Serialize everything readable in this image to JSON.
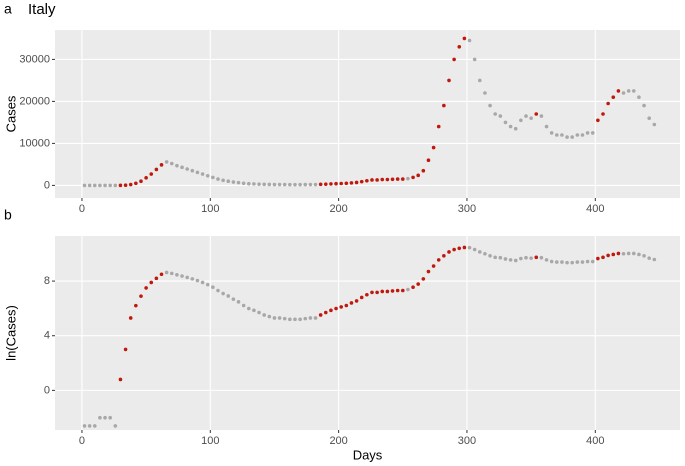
{
  "chart_data": [
    {
      "type": "scatter",
      "panel_label": "a",
      "title": "Italy",
      "ylabel": "Cases",
      "xlim": [
        -21,
        466
      ],
      "ylim": [
        -3000,
        37000
      ],
      "xticks": [
        0,
        100,
        200,
        300,
        400
      ],
      "yticks": [
        0,
        10000,
        20000,
        30000
      ],
      "grid": true,
      "series": [
        {
          "color": "#a8a8a8",
          "x": [
            2,
            6,
            10,
            14,
            18,
            22,
            26,
            66,
            70,
            74,
            78,
            82,
            86,
            90,
            94,
            98,
            102,
            106,
            110,
            114,
            118,
            122,
            126,
            130,
            134,
            138,
            142,
            146,
            150,
            154,
            158,
            162,
            166,
            170,
            174,
            178,
            182,
            254,
            302,
            306,
            310,
            314,
            318,
            322,
            326,
            330,
            334,
            338,
            342,
            346,
            350,
            358,
            362,
            366,
            370,
            374,
            378,
            382,
            386,
            390,
            394,
            398,
            422,
            426,
            430,
            434,
            438,
            442,
            446
          ],
          "values": [
            0,
            0,
            0,
            0,
            0,
            0,
            0,
            5600,
            5200,
            4700,
            4300,
            3900,
            3500,
            3100,
            2700,
            2300,
            1900,
            1500,
            1200,
            1000,
            800,
            650,
            500,
            400,
            350,
            300,
            250,
            220,
            200,
            200,
            190,
            180,
            180,
            180,
            190,
            200,
            200,
            1600,
            34500,
            30000,
            25000,
            22000,
            19000,
            17000,
            16500,
            15000,
            14000,
            13500,
            15500,
            16500,
            16000,
            16500,
            14000,
            12500,
            12000,
            12000,
            11500,
            11500,
            12000,
            12000,
            12500,
            12500,
            22000,
            22500,
            22500,
            21000,
            19000,
            16000,
            14500
          ]
        },
        {
          "color": "#c0180c",
          "x": [
            30,
            34,
            38,
            42,
            46,
            50,
            54,
            58,
            62,
            186,
            190,
            194,
            198,
            202,
            206,
            210,
            214,
            218,
            222,
            226,
            230,
            234,
            238,
            242,
            246,
            250,
            258,
            262,
            266,
            270,
            274,
            278,
            282,
            286,
            290,
            294,
            298,
            354,
            402,
            406,
            410,
            414,
            418
          ],
          "values": [
            20,
            50,
            200,
            500,
            1000,
            1800,
            2700,
            3800,
            4900,
            250,
            300,
            350,
            400,
            450,
            500,
            600,
            700,
            900,
            1100,
            1300,
            1300,
            1400,
            1400,
            1450,
            1500,
            1500,
            1900,
            2400,
            3500,
            6000,
            9000,
            14000,
            19000,
            25000,
            30000,
            33000,
            35000,
            17000,
            15500,
            17000,
            19500,
            21000,
            22500
          ]
        }
      ]
    },
    {
      "type": "scatter",
      "panel_label": "b",
      "ylabel": "ln(Cases)",
      "xlabel": "Days",
      "xlim": [
        -21,
        466
      ],
      "ylim": [
        -2.9,
        11.3
      ],
      "xticks": [
        0,
        100,
        200,
        300,
        400
      ],
      "yticks": [
        0,
        4,
        8
      ],
      "grid": true,
      "series": [
        {
          "color": "#a8a8a8",
          "x": [
            2,
            6,
            10,
            14,
            18,
            22,
            26,
            66,
            70,
            74,
            78,
            82,
            86,
            90,
            94,
            98,
            102,
            106,
            110,
            114,
            118,
            122,
            126,
            130,
            134,
            138,
            142,
            146,
            150,
            154,
            158,
            162,
            166,
            170,
            174,
            178,
            182,
            254,
            302,
            306,
            310,
            314,
            318,
            322,
            326,
            330,
            334,
            338,
            342,
            346,
            350,
            358,
            362,
            366,
            370,
            374,
            378,
            382,
            386,
            390,
            394,
            398,
            422,
            426,
            430,
            434,
            438,
            442,
            446
          ],
          "values": [
            -2.6,
            -2.6,
            -2.6,
            -2.0,
            -2.0,
            -2.0,
            -2.6,
            8.63,
            8.56,
            8.46,
            8.37,
            8.27,
            8.16,
            8.04,
            7.9,
            7.74,
            7.55,
            7.31,
            7.09,
            6.91,
            6.68,
            6.48,
            6.21,
            5.99,
            5.86,
            5.7,
            5.52,
            5.4,
            5.3,
            5.3,
            5.25,
            5.2,
            5.2,
            5.2,
            5.25,
            5.3,
            5.3,
            7.38,
            10.45,
            10.31,
            10.13,
            10.0,
            9.85,
            9.74,
            9.71,
            9.62,
            9.55,
            9.51,
            9.65,
            9.71,
            9.68,
            9.71,
            9.55,
            9.43,
            9.39,
            9.39,
            9.35,
            9.35,
            9.39,
            9.39,
            9.43,
            9.43,
            10.0,
            10.02,
            10.02,
            9.95,
            9.85,
            9.68,
            9.58
          ]
        },
        {
          "color": "#c0180c",
          "x": [
            30,
            34,
            38,
            42,
            46,
            50,
            54,
            58,
            62,
            186,
            190,
            194,
            198,
            202,
            206,
            210,
            214,
            218,
            222,
            226,
            230,
            234,
            238,
            242,
            246,
            250,
            258,
            262,
            266,
            270,
            274,
            278,
            282,
            286,
            290,
            294,
            298,
            354,
            402,
            406,
            410,
            414,
            418
          ],
          "values": [
            0.8,
            3.0,
            5.3,
            6.2,
            6.9,
            7.5,
            7.9,
            8.2,
            8.5,
            5.52,
            5.7,
            5.86,
            5.99,
            6.11,
            6.21,
            6.4,
            6.55,
            6.8,
            7.0,
            7.17,
            7.17,
            7.24,
            7.24,
            7.28,
            7.31,
            7.31,
            7.55,
            7.78,
            8.16,
            8.7,
            9.1,
            9.55,
            9.85,
            10.13,
            10.31,
            10.4,
            10.46,
            9.74,
            9.65,
            9.74,
            9.88,
            9.95,
            10.02
          ]
        }
      ]
    }
  ]
}
